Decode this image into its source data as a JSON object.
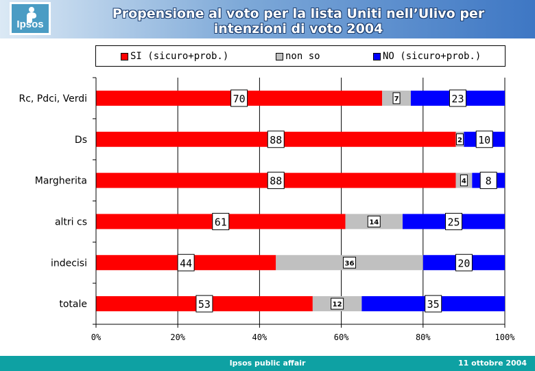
{
  "header": {
    "logo_text": "Ipsos",
    "title_line1": "Propensione al voto per la lista Uniti nell’Ulivo per",
    "title_line2": "intenzioni di voto 2004"
  },
  "footer": {
    "center": "Ipsos public affair",
    "date": "11 ottobre 2004"
  },
  "chart_data": {
    "type": "bar",
    "orientation": "horizontal",
    "stacked": "percent",
    "categories": [
      "Rc, Pdci, Verdi",
      "Ds",
      "Margherita",
      "altri cs",
      "indecisi",
      "totale"
    ],
    "series": [
      {
        "name": "SI (sicuro+prob.)",
        "color": "#ff0000",
        "values": [
          70,
          88,
          88,
          61,
          44,
          53
        ]
      },
      {
        "name": "non so",
        "color": "#c0c0c0",
        "values": [
          7,
          2,
          4,
          14,
          36,
          12
        ]
      },
      {
        "name": "NO (sicuro+prob.)",
        "color": "#0000ff",
        "values": [
          23,
          10,
          8,
          25,
          20,
          35
        ]
      }
    ],
    "x_ticks": [
      "0%",
      "20%",
      "40%",
      "60%",
      "80%",
      "100%"
    ],
    "xlim": [
      0,
      100
    ],
    "grid": "vertical",
    "legend_position": "top"
  }
}
